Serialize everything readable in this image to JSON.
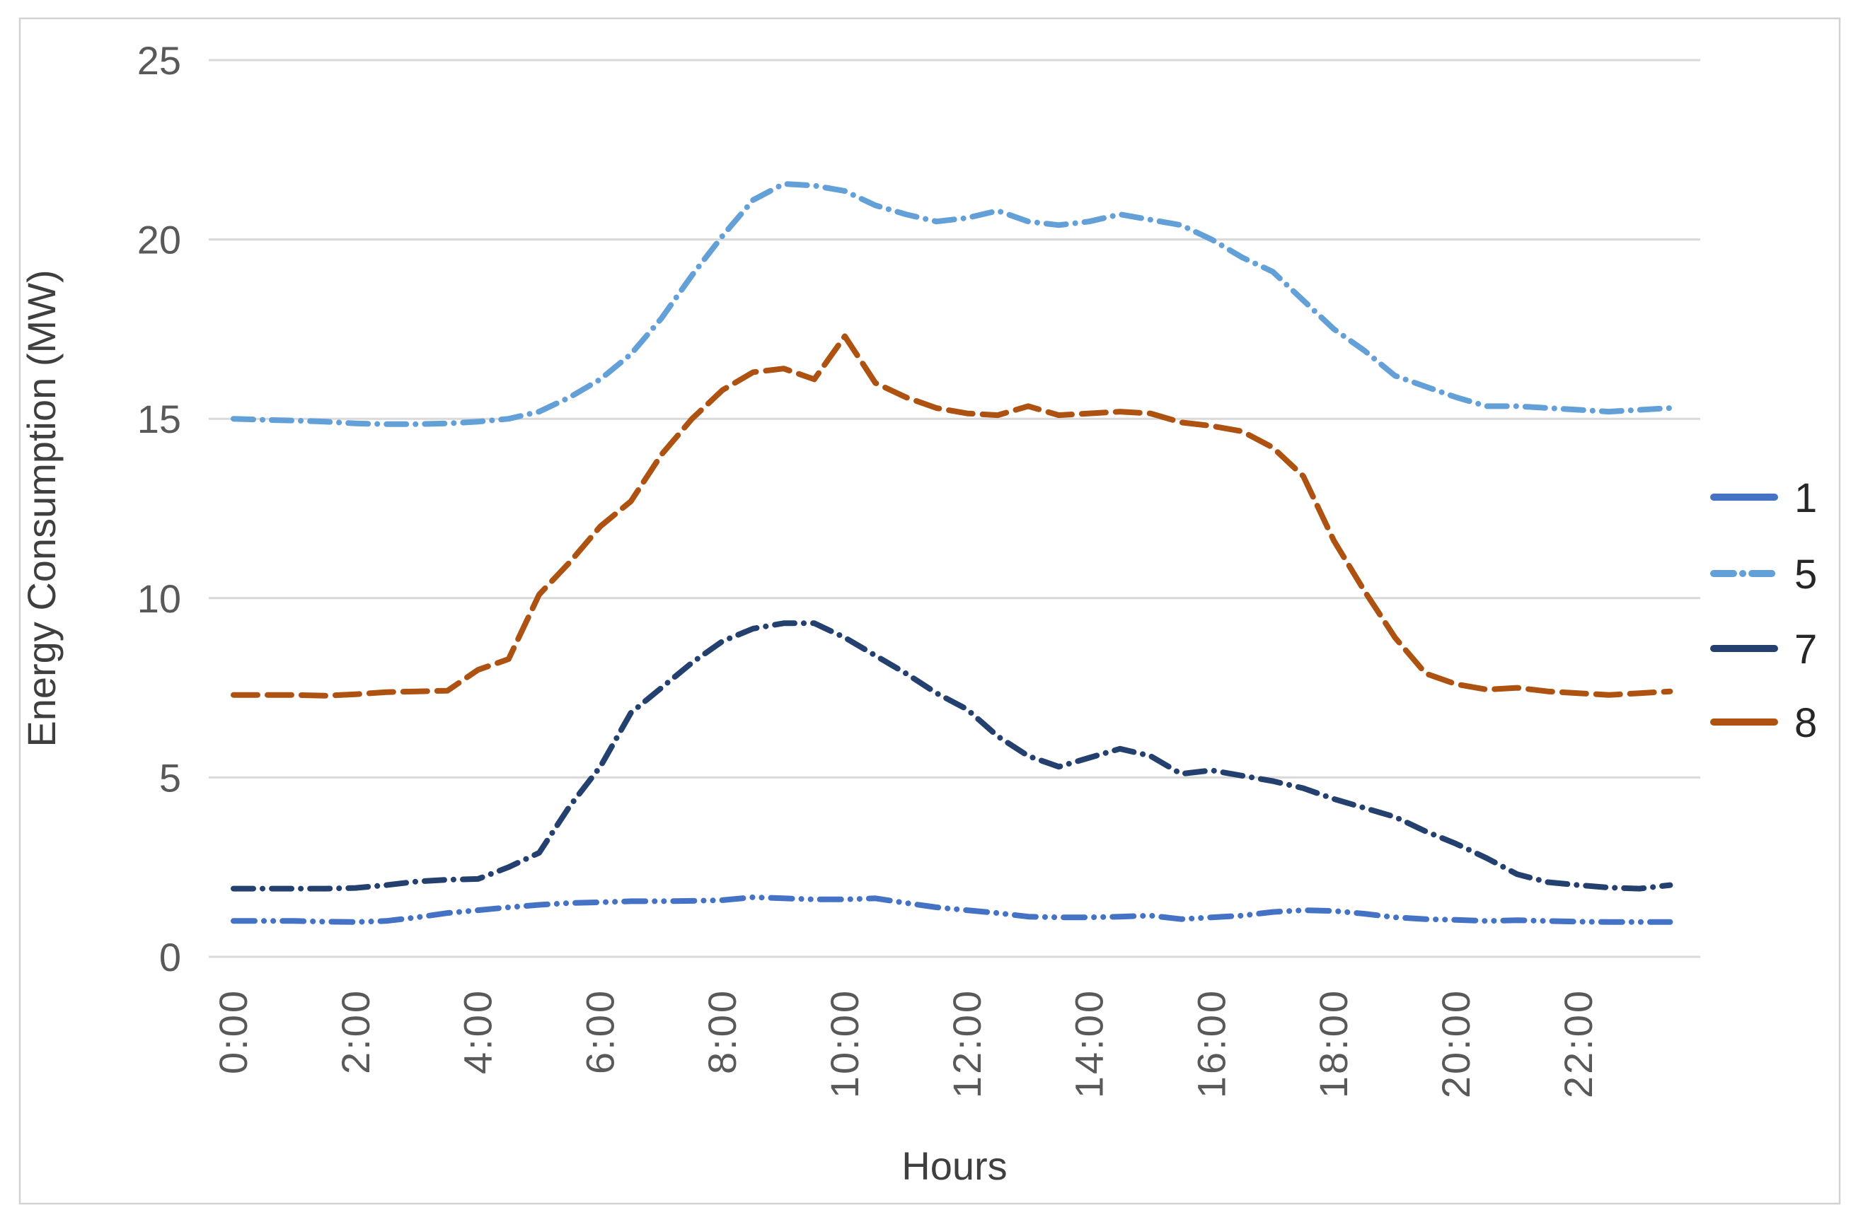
{
  "chart_data": {
    "type": "line",
    "title": "",
    "xlabel": "Hours",
    "ylabel": "Energy Consumption (MW)",
    "x_unit_hours": true,
    "x_step_hours": 0.5,
    "x_tick_labels": [
      "0:00",
      "2:00",
      "4:00",
      "6:00",
      "8:00",
      "10:00",
      "12:00",
      "14:00",
      "16:00",
      "18:00",
      "20:00",
      "22:00"
    ],
    "x_tick_hours": [
      0,
      2,
      4,
      6,
      8,
      10,
      12,
      14,
      16,
      18,
      20,
      22
    ],
    "y_ticks": [
      0,
      5,
      10,
      15,
      20,
      25
    ],
    "ylim": [
      0,
      25
    ],
    "xlim_hours": [
      0,
      23.5
    ],
    "grid": "horizontal",
    "grid_color": "#d9d9d9",
    "legend_position": "right",
    "series": [
      {
        "name": "1",
        "color": "#4472c4",
        "dash": "dash-dot-dot",
        "legend_dash": "solid",
        "values": [
          1.0,
          1.0,
          1.0,
          0.98,
          0.97,
          1.0,
          1.1,
          1.22,
          1.3,
          1.38,
          1.45,
          1.5,
          1.52,
          1.55,
          1.55,
          1.56,
          1.58,
          1.66,
          1.63,
          1.6,
          1.6,
          1.63,
          1.5,
          1.38,
          1.3,
          1.22,
          1.12,
          1.1,
          1.1,
          1.12,
          1.15,
          1.05,
          1.1,
          1.15,
          1.25,
          1.3,
          1.28,
          1.2,
          1.1,
          1.05,
          1.03,
          1.0,
          1.02,
          1.0,
          0.98,
          0.97,
          0.97,
          0.97
        ]
      },
      {
        "name": "5",
        "color": "#64a0d8",
        "dash": "dash-dot",
        "legend_dash": "dash-dot",
        "values": [
          15.0,
          14.97,
          14.95,
          14.92,
          14.87,
          14.85,
          14.85,
          14.87,
          14.92,
          15.0,
          15.2,
          15.6,
          16.1,
          16.8,
          17.8,
          19.0,
          20.1,
          21.1,
          21.55,
          21.5,
          21.35,
          20.95,
          20.7,
          20.5,
          20.6,
          20.8,
          20.5,
          20.4,
          20.5,
          20.7,
          20.55,
          20.4,
          20.0,
          19.5,
          19.1,
          18.3,
          17.5,
          16.9,
          16.2,
          15.9,
          15.6,
          15.35,
          15.35,
          15.3,
          15.25,
          15.2,
          15.25,
          15.3
        ]
      },
      {
        "name": "7",
        "color": "#24406e",
        "dash": "dash-dot",
        "legend_dash": "solid",
        "values": [
          1.9,
          1.9,
          1.9,
          1.9,
          1.92,
          2.0,
          2.1,
          2.15,
          2.17,
          2.5,
          2.9,
          4.2,
          5.3,
          6.8,
          7.5,
          8.2,
          8.8,
          9.15,
          9.3,
          9.3,
          8.9,
          8.4,
          7.9,
          7.35,
          6.9,
          6.15,
          5.6,
          5.3,
          5.55,
          5.8,
          5.6,
          5.1,
          5.2,
          5.05,
          4.9,
          4.7,
          4.4,
          4.15,
          3.9,
          3.5,
          3.15,
          2.75,
          2.3,
          2.08,
          2.0,
          1.93,
          1.9,
          2.0
        ]
      },
      {
        "name": "8",
        "color": "#ae5211",
        "dash": "long-dash",
        "legend_dash": "solid",
        "values": [
          7.3,
          7.3,
          7.3,
          7.28,
          7.32,
          7.38,
          7.4,
          7.42,
          8.0,
          8.3,
          10.1,
          11.0,
          12.0,
          12.7,
          14.0,
          15.0,
          15.8,
          16.3,
          16.4,
          16.1,
          17.3,
          16.0,
          15.6,
          15.3,
          15.15,
          15.1,
          15.35,
          15.1,
          15.15,
          15.2,
          15.15,
          14.9,
          14.8,
          14.65,
          14.2,
          13.4,
          11.6,
          10.2,
          8.9,
          7.9,
          7.6,
          7.45,
          7.5,
          7.4,
          7.35,
          7.3,
          7.35,
          7.4
        ]
      }
    ]
  }
}
